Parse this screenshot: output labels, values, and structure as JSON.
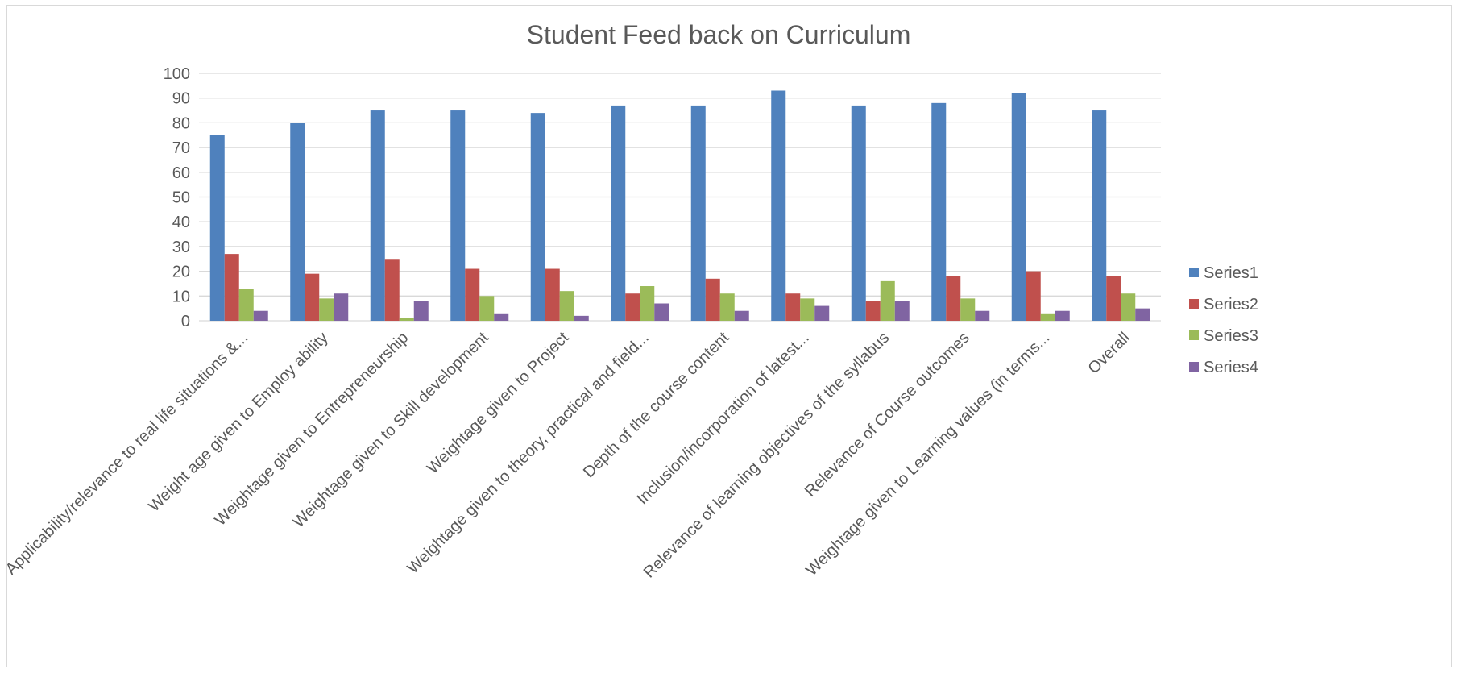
{
  "chart_data": {
    "type": "bar",
    "title": "Student Feed back on Curriculum",
    "xlabel": "",
    "ylabel": "",
    "ylim": [
      0,
      100
    ],
    "yticks": [
      0,
      10,
      20,
      30,
      40,
      50,
      60,
      70,
      80,
      90,
      100
    ],
    "grid": true,
    "legend_position": "right",
    "categories": [
      "Applicability/relevance to real life situations &...",
      "Weight age  given to Employ ability",
      "Weightage given to Entrepreneurship",
      "Weightage given to Skill development",
      "Weightage given to Project",
      "Weightage given to theory, practical and field...",
      "Depth of the course content",
      "Inclusion/incorporation of latest...",
      "Relevance of learning objectives of the syllabus",
      "Relevance of Course outcomes",
      "Weightage given to Learning values (in terms...",
      "Overall"
    ],
    "series": [
      {
        "name": "Series1",
        "color": "#4f81bd",
        "values": [
          75,
          80,
          85,
          85,
          84,
          87,
          87,
          93,
          87,
          88,
          92,
          85
        ]
      },
      {
        "name": "Series2",
        "color": "#c0504d",
        "values": [
          27,
          19,
          25,
          21,
          21,
          11,
          17,
          11,
          8,
          18,
          20,
          18
        ]
      },
      {
        "name": "Series3",
        "color": "#9bbb59",
        "values": [
          13,
          9,
          1,
          10,
          12,
          14,
          11,
          9,
          16,
          9,
          3,
          11
        ]
      },
      {
        "name": "Series4",
        "color": "#8064a2",
        "values": [
          4,
          11,
          8,
          3,
          2,
          7,
          4,
          6,
          8,
          4,
          4,
          5
        ]
      }
    ]
  }
}
